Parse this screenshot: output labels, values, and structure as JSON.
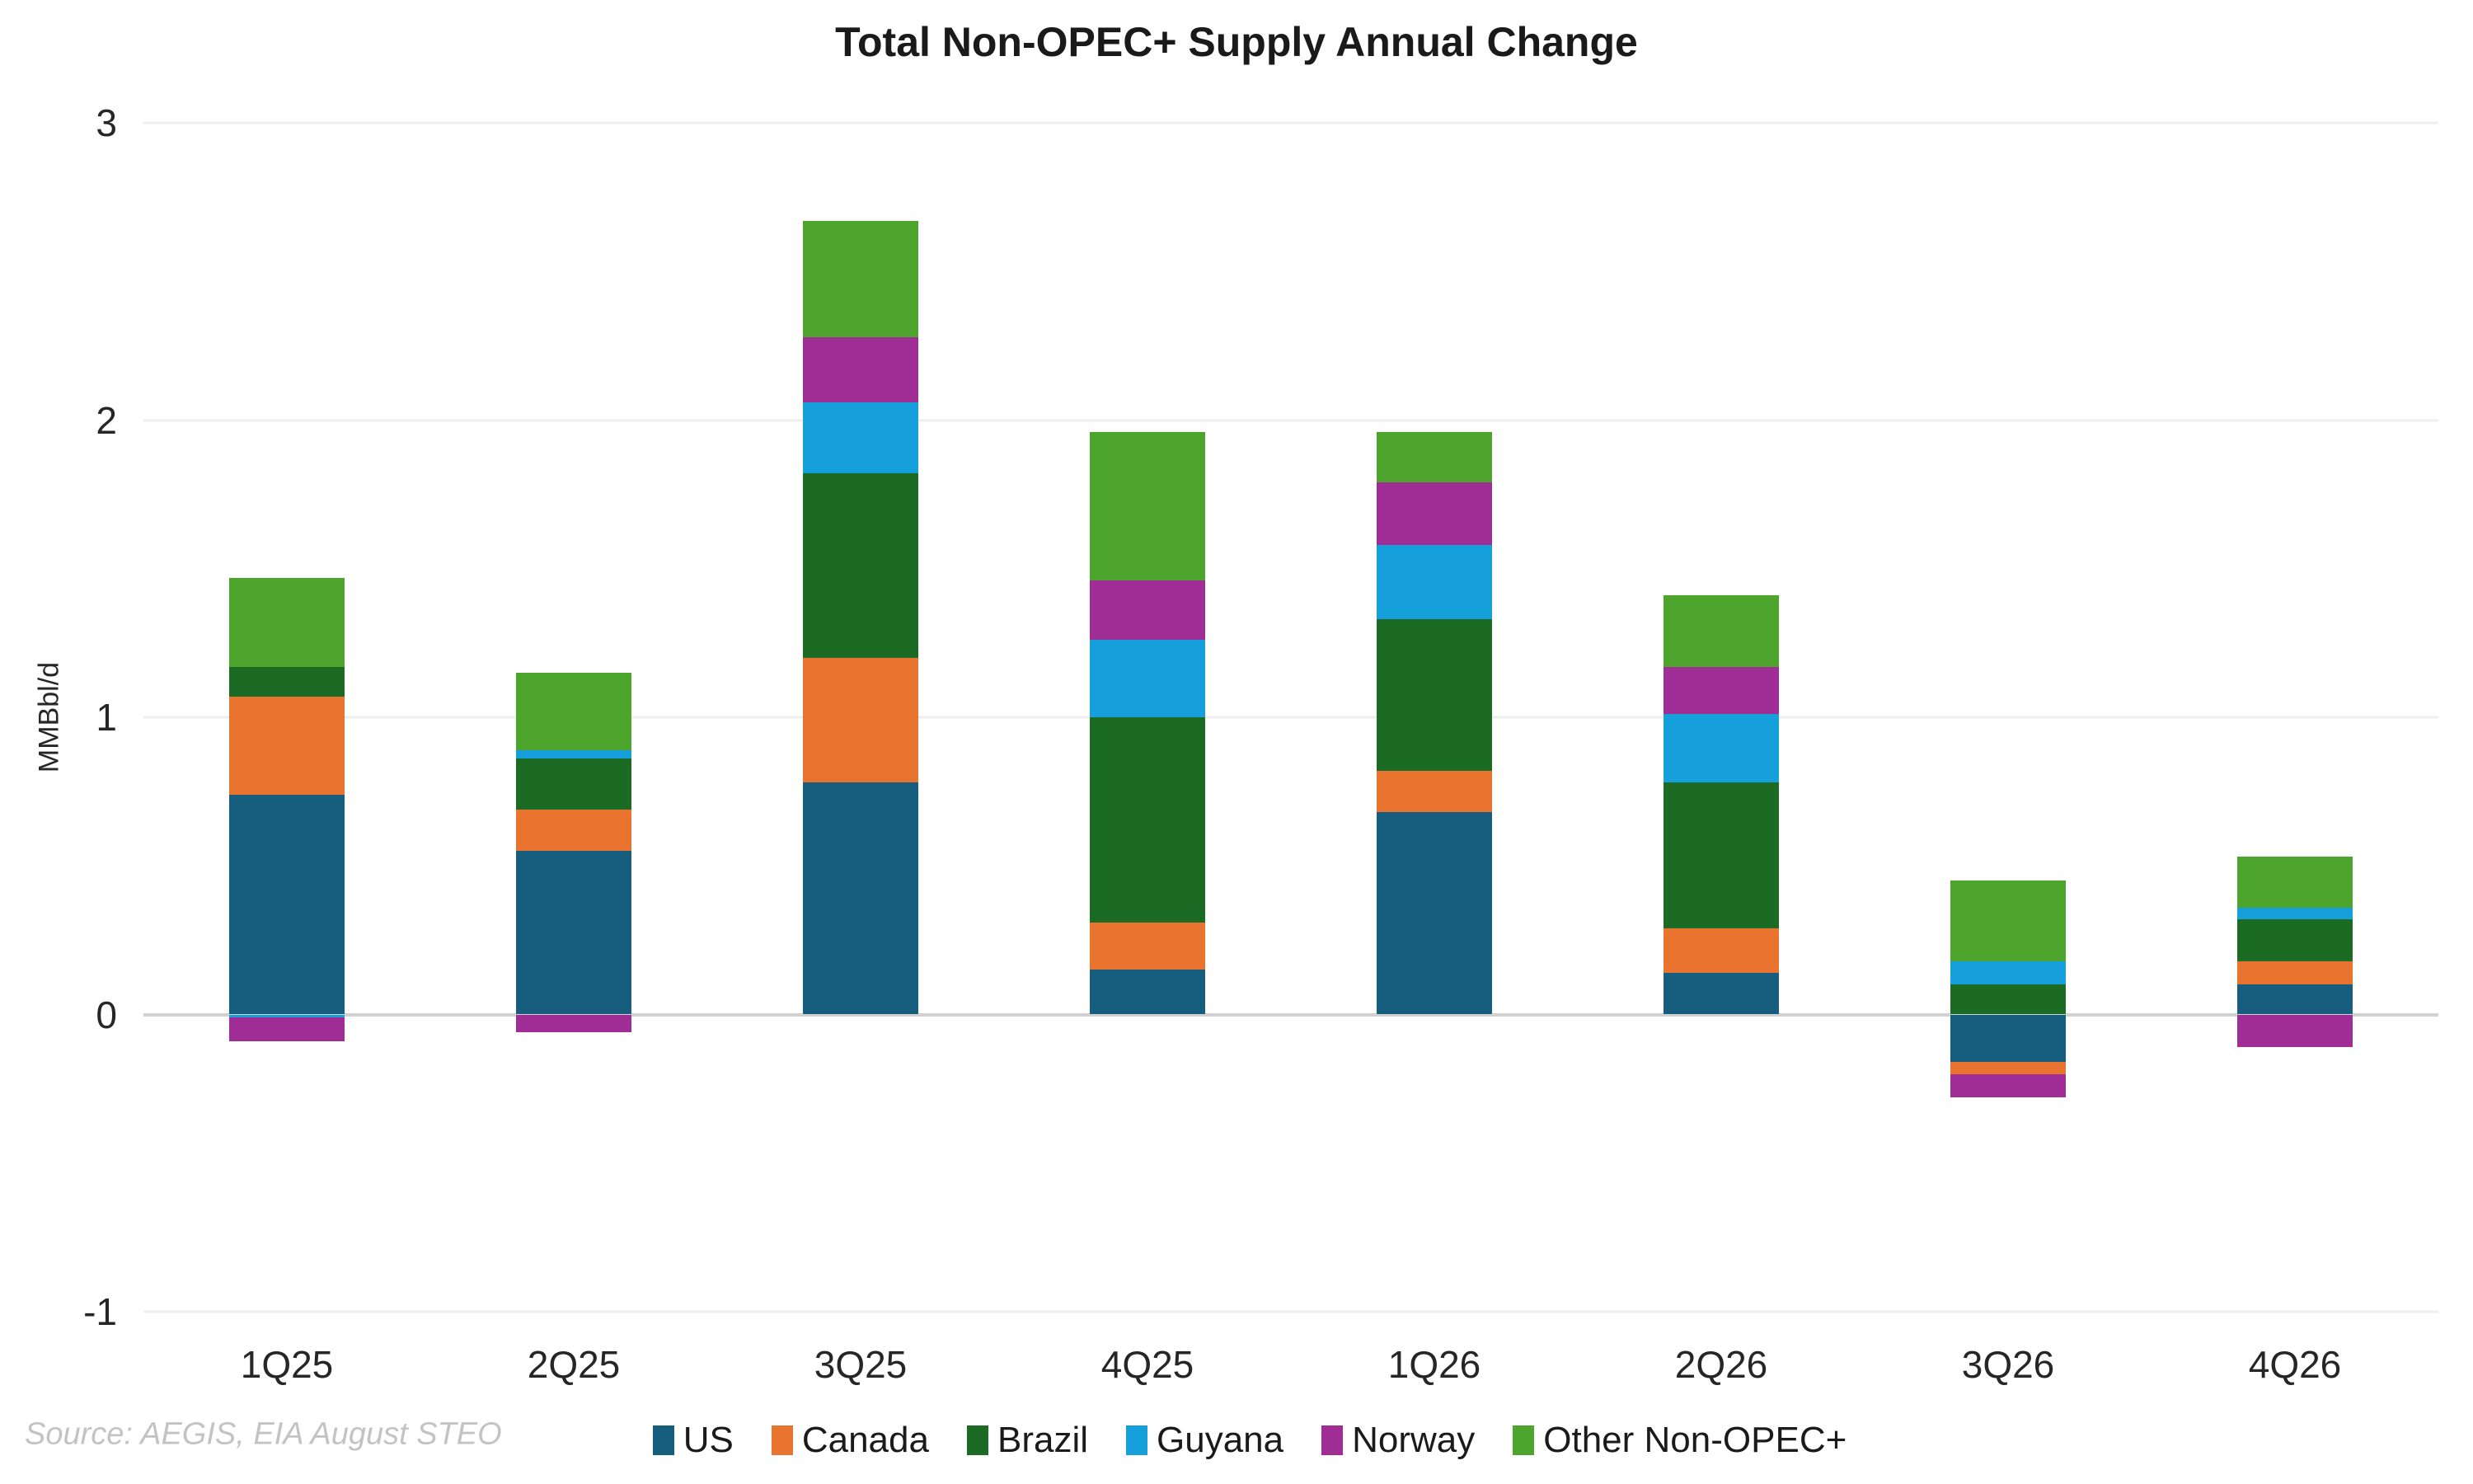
{
  "chart_data": {
    "type": "bar",
    "stacked": true,
    "title": "Total Non-OPEC+ Supply Annual Change",
    "ylabel": "MMBbl/d",
    "xlabel": "",
    "source": "Source: AEGIS, EIA August STEO",
    "ylim": [
      -1,
      3
    ],
    "yticks": [
      3,
      2,
      1,
      0,
      -1
    ],
    "grid": "horizontal-light",
    "legend_position": "bottom-center",
    "background_color": "#ffffff",
    "gridline_color": "#efefef",
    "zero_line_color": "#d2d2d2",
    "categories": [
      "1Q25",
      "2Q25",
      "3Q25",
      "4Q25",
      "1Q26",
      "2Q26",
      "3Q26",
      "4Q26"
    ],
    "series": [
      {
        "name": "US",
        "color": "#175D7E",
        "values": [
          0.74,
          0.55,
          0.78,
          0.15,
          0.68,
          0.14,
          -0.16,
          0.1
        ]
      },
      {
        "name": "Canada",
        "color": "#E8742F",
        "values": [
          0.33,
          0.14,
          0.42,
          0.16,
          0.14,
          0.15,
          -0.04,
          0.08
        ]
      },
      {
        "name": "Brazil",
        "color": "#1C6B24",
        "values": [
          0.1,
          0.17,
          0.62,
          0.69,
          0.51,
          0.49,
          0.1,
          0.14
        ]
      },
      {
        "name": "Guyana",
        "color": "#159FDB",
        "values": [
          -0.01,
          0.03,
          0.24,
          0.26,
          0.25,
          0.23,
          0.08,
          0.04
        ]
      },
      {
        "name": "Norway",
        "color": "#A02C95",
        "values": [
          -0.08,
          -0.06,
          0.22,
          0.2,
          0.21,
          0.16,
          -0.08,
          -0.11
        ]
      },
      {
        "name": "Other Non-OPEC+",
        "color": "#4DA52D",
        "values": [
          0.3,
          0.26,
          0.39,
          0.5,
          0.17,
          0.24,
          0.27,
          0.17
        ]
      }
    ]
  }
}
